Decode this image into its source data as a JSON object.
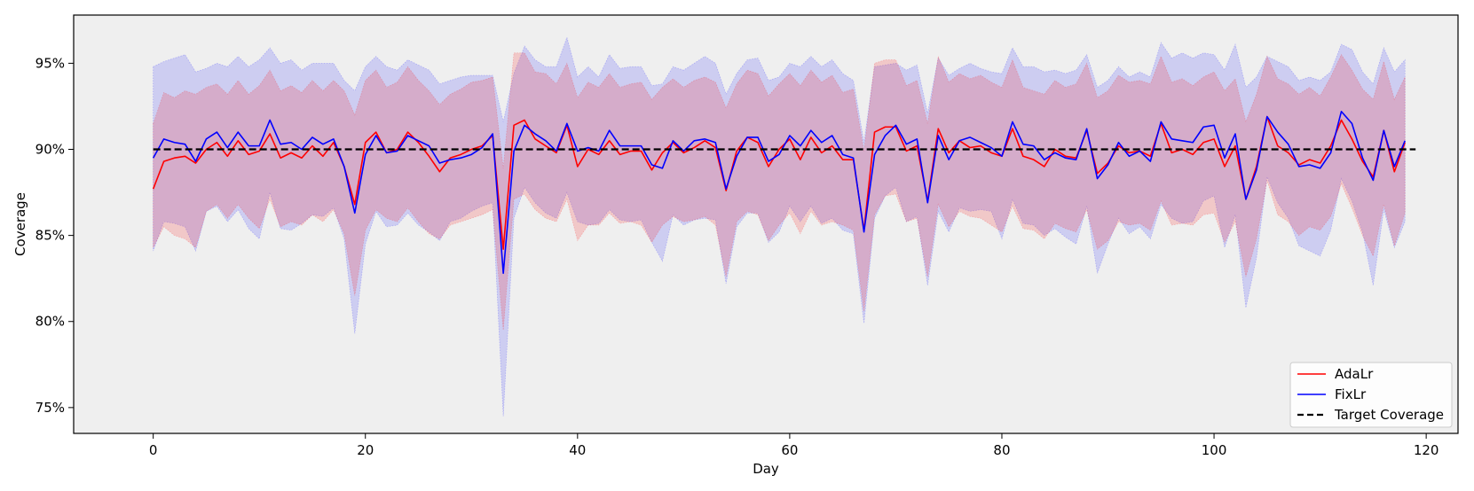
{
  "chart_data": {
    "type": "line",
    "title": "",
    "xlabel": "Day",
    "ylabel": "Coverage",
    "xlim": [
      -7.5,
      123
    ],
    "ylim": [
      73.5,
      97.8
    ],
    "x_ticks": [
      0,
      20,
      40,
      60,
      80,
      100,
      120
    ],
    "y_ticks": [
      75,
      80,
      85,
      90,
      95
    ],
    "y_tick_labels": [
      "75%",
      "80%",
      "85%",
      "90%",
      "95%"
    ],
    "x_tick_labels": [
      "0",
      "20",
      "40",
      "60",
      "80",
      "100",
      "120"
    ],
    "background": "#efefef",
    "legend_position": "lower-right",
    "target": {
      "name": "Target Coverage",
      "value": 90,
      "x_range": [
        0,
        119
      ],
      "color": "#000000",
      "style": "dashed"
    },
    "series": [
      {
        "name": "AdaLr",
        "color": "#ff0000",
        "band_color": "#f4b4b4",
        "x_start": 0,
        "values": [
          87.7,
          89.3,
          89.5,
          89.6,
          89.2,
          90.0,
          90.4,
          89.6,
          90.5,
          89.7,
          89.9,
          90.9,
          89.5,
          89.8,
          89.5,
          90.2,
          89.6,
          90.4,
          89.0,
          86.8,
          90.4,
          91.0,
          89.8,
          90.0,
          91.0,
          90.4,
          89.6,
          88.7,
          89.5,
          89.7,
          90.0,
          90.2,
          90.8,
          84.2,
          91.4,
          91.7,
          90.6,
          90.2,
          89.8,
          91.4,
          89.0,
          90.0,
          89.7,
          90.5,
          89.7,
          89.9,
          89.9,
          88.8,
          89.8,
          90.4,
          89.8,
          90.1,
          90.5,
          90.1,
          87.6,
          89.9,
          90.7,
          90.4,
          89.0,
          90.0,
          90.6,
          89.4,
          90.7,
          89.8,
          90.2,
          89.4,
          89.4,
          85.3,
          91.0,
          91.3,
          91.3,
          89.9,
          90.2,
          87.0,
          91.2,
          89.8,
          90.5,
          90.1,
          90.2,
          89.8,
          89.6,
          91.2,
          89.6,
          89.4,
          89.0,
          90.0,
          89.6,
          89.5,
          91.1,
          88.6,
          89.2,
          90.2,
          89.8,
          89.9,
          89.6,
          91.5,
          89.8,
          90.0,
          89.7,
          90.4,
          90.6,
          89.0,
          90.2,
          87.1,
          89.0,
          91.9,
          90.2,
          89.8,
          89.1,
          89.4,
          89.2,
          90.2,
          91.7,
          90.6,
          89.3,
          88.4,
          91.1,
          88.7,
          90.4
        ],
        "lower": [
          84.3,
          85.5,
          85.0,
          84.8,
          84.3,
          86.4,
          86.8,
          86.0,
          86.8,
          86.0,
          85.4,
          87.1,
          85.5,
          85.8,
          85.6,
          86.2,
          85.8,
          86.5,
          85.1,
          81.5,
          85.3,
          86.5,
          86.0,
          85.8,
          86.6,
          85.8,
          85.1,
          84.8,
          85.6,
          85.8,
          86.0,
          86.2,
          86.5,
          79.5,
          87.1,
          87.4,
          86.5,
          86.0,
          85.8,
          87.1,
          84.7,
          85.6,
          85.6,
          86.3,
          85.7,
          85.8,
          85.6,
          84.6,
          85.6,
          86.1,
          85.8,
          85.9,
          86.1,
          85.6,
          82.6,
          85.8,
          86.4,
          86.2,
          84.7,
          85.6,
          86.3,
          85.1,
          86.4,
          85.6,
          85.8,
          85.6,
          85.3,
          80.6,
          86.2,
          87.3,
          87.4,
          85.8,
          86.0,
          82.6,
          86.8,
          85.5,
          86.4,
          86.1,
          86.0,
          85.6,
          85.2,
          86.7,
          85.4,
          85.3,
          84.8,
          85.7,
          85.4,
          85.2,
          86.5,
          84.2,
          84.7,
          85.8,
          85.6,
          85.7,
          85.3,
          87.0,
          85.6,
          85.7,
          85.6,
          86.2,
          86.3,
          84.6,
          85.8,
          82.6,
          84.8,
          88.2,
          86.2,
          85.8,
          85.0,
          85.5,
          85.3,
          86.1,
          88.0,
          86.6,
          85.0,
          83.8,
          86.8,
          84.4,
          86.3
        ],
        "upper": [
          91.5,
          93.3,
          93.0,
          93.4,
          93.2,
          93.6,
          93.8,
          93.2,
          94.0,
          93.2,
          93.7,
          94.6,
          93.4,
          93.7,
          93.3,
          94.0,
          93.4,
          94.0,
          93.4,
          92.0,
          94.0,
          94.6,
          93.6,
          93.9,
          94.8,
          94.0,
          93.4,
          92.6,
          93.2,
          93.5,
          93.9,
          94.0,
          94.2,
          88.9,
          95.6,
          95.6,
          94.5,
          94.4,
          93.8,
          95.0,
          93.0,
          93.9,
          93.6,
          94.4,
          93.6,
          93.8,
          93.9,
          92.9,
          93.6,
          94.1,
          93.6,
          94.0,
          94.2,
          93.9,
          92.4,
          93.8,
          94.6,
          94.4,
          93.1,
          93.8,
          94.4,
          93.7,
          94.6,
          93.9,
          94.3,
          93.3,
          93.5,
          89.9,
          95.0,
          95.2,
          95.2,
          93.7,
          94.0,
          91.5,
          95.4,
          93.9,
          94.4,
          94.1,
          94.3,
          93.9,
          93.6,
          95.2,
          93.6,
          93.4,
          93.2,
          94.0,
          93.6,
          93.8,
          95.0,
          93.0,
          93.4,
          94.3,
          93.9,
          94.0,
          93.8,
          95.4,
          93.9,
          94.1,
          93.7,
          94.2,
          94.5,
          93.4,
          94.1,
          91.6,
          93.2,
          95.4,
          94.1,
          93.8,
          93.2,
          93.6,
          93.1,
          94.2,
          95.5,
          94.6,
          93.5,
          92.9,
          95.1,
          92.9,
          94.2
        ]
      },
      {
        "name": "FixLr",
        "color": "#0000ff",
        "band_color": "#c8c8f4",
        "x_start": 0,
        "values": [
          89.5,
          90.6,
          90.4,
          90.3,
          89.3,
          90.6,
          91.0,
          90.1,
          91.0,
          90.2,
          90.2,
          91.7,
          90.3,
          90.4,
          90.0,
          90.7,
          90.3,
          90.6,
          89.0,
          86.3,
          89.7,
          90.8,
          89.8,
          89.9,
          90.8,
          90.5,
          90.2,
          89.2,
          89.4,
          89.5,
          89.7,
          90.1,
          90.9,
          82.8,
          89.9,
          91.4,
          90.9,
          90.5,
          89.9,
          91.5,
          89.9,
          90.1,
          89.9,
          91.1,
          90.2,
          90.2,
          90.2,
          89.1,
          88.9,
          90.5,
          89.9,
          90.5,
          90.6,
          90.4,
          87.7,
          89.6,
          90.7,
          90.7,
          89.3,
          89.7,
          90.8,
          90.2,
          91.1,
          90.4,
          90.8,
          89.7,
          89.5,
          85.2,
          89.7,
          90.8,
          91.4,
          90.3,
          90.6,
          86.9,
          90.8,
          89.4,
          90.5,
          90.7,
          90.4,
          90.1,
          89.6,
          91.6,
          90.3,
          90.2,
          89.4,
          89.8,
          89.5,
          89.4,
          91.2,
          88.3,
          89.1,
          90.4,
          89.6,
          89.9,
          89.3,
          91.6,
          90.6,
          90.5,
          90.4,
          91.3,
          91.4,
          89.5,
          90.9,
          87.1,
          88.8,
          91.9,
          91.0,
          90.3,
          89.0,
          89.1,
          88.9,
          89.8,
          92.2,
          91.5,
          89.5,
          88.2,
          91.1,
          89.0,
          90.5
        ],
        "lower": [
          84.1,
          85.8,
          85.7,
          85.5,
          84.1,
          86.4,
          86.7,
          85.8,
          86.5,
          85.4,
          84.8,
          87.5,
          85.4,
          85.3,
          85.7,
          86.2,
          86.1,
          86.6,
          84.8,
          79.3,
          84.5,
          86.4,
          85.5,
          85.6,
          86.3,
          85.6,
          85.2,
          84.7,
          85.8,
          86.0,
          86.4,
          86.7,
          86.9,
          74.5,
          86.0,
          87.8,
          86.9,
          86.3,
          86.0,
          87.5,
          85.8,
          85.6,
          85.7,
          86.5,
          85.9,
          85.8,
          85.9,
          84.6,
          83.5,
          86.2,
          85.6,
          85.9,
          86.0,
          85.9,
          82.2,
          85.5,
          86.3,
          86.3,
          84.6,
          85.2,
          86.7,
          85.8,
          86.7,
          85.7,
          86.0,
          85.3,
          85.1,
          79.9,
          86.0,
          87.3,
          87.8,
          85.8,
          86.1,
          82.1,
          86.4,
          85.2,
          86.6,
          86.4,
          86.5,
          86.4,
          84.8,
          87.1,
          85.7,
          85.6,
          85.0,
          85.4,
          84.9,
          84.5,
          86.7,
          82.8,
          84.5,
          86.0,
          85.1,
          85.5,
          84.8,
          86.8,
          86.0,
          85.7,
          85.8,
          87.0,
          87.3,
          84.3,
          86.2,
          80.8,
          83.7,
          88.4,
          86.9,
          86.0,
          84.4,
          84.1,
          83.8,
          85.3,
          88.3,
          87.0,
          85.2,
          82.1,
          86.5,
          84.3,
          85.8
        ],
        "upper": [
          94.8,
          95.1,
          95.3,
          95.5,
          94.5,
          94.7,
          95.0,
          94.8,
          95.4,
          94.8,
          95.2,
          95.9,
          95.0,
          95.2,
          94.6,
          95.0,
          95.0,
          95.0,
          94.0,
          93.4,
          94.8,
          95.4,
          94.8,
          94.6,
          95.2,
          94.9,
          94.6,
          93.8,
          94.0,
          94.2,
          94.3,
          94.3,
          94.3,
          91.6,
          94.4,
          96.0,
          95.2,
          94.8,
          94.8,
          96.5,
          94.2,
          94.8,
          94.2,
          95.5,
          94.7,
          94.8,
          94.8,
          93.7,
          93.8,
          94.8,
          94.6,
          95.0,
          95.4,
          95.0,
          93.2,
          94.4,
          95.2,
          95.3,
          94.0,
          94.2,
          95.0,
          94.8,
          95.4,
          94.8,
          95.2,
          94.4,
          94.0,
          90.4,
          94.8,
          94.9,
          95.0,
          94.6,
          94.9,
          92.1,
          95.3,
          94.3,
          94.7,
          95.0,
          94.7,
          94.5,
          94.4,
          95.9,
          94.8,
          94.8,
          94.5,
          94.6,
          94.4,
          94.6,
          95.5,
          93.6,
          94.0,
          94.8,
          94.2,
          94.5,
          94.2,
          96.2,
          95.3,
          95.6,
          95.3,
          95.6,
          95.5,
          94.6,
          96.1,
          93.6,
          94.2,
          95.4,
          95.1,
          94.8,
          94.0,
          94.2,
          94.0,
          94.5,
          96.1,
          95.8,
          94.5,
          93.8,
          95.9,
          94.5,
          95.2
        ]
      }
    ]
  }
}
